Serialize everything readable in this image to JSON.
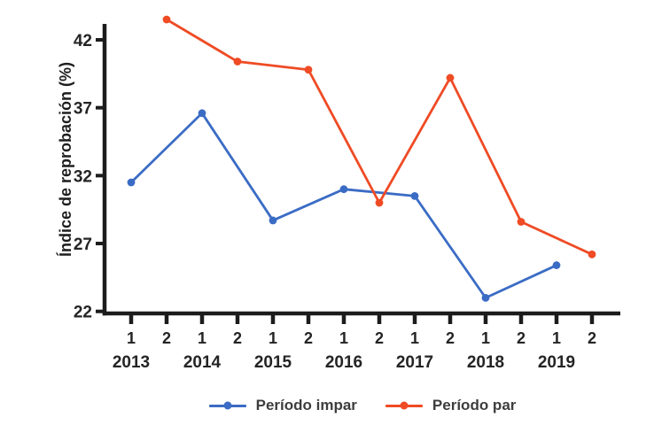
{
  "chart_data": {
    "type": "line",
    "title": "",
    "ylabel": "Índice de reprobación (%)",
    "xlabel": "",
    "y_ticks": [
      22,
      27,
      32,
      37,
      42
    ],
    "ylim": [
      22,
      43.8
    ],
    "grid": false,
    "legend_position": "bottom",
    "x_axis": {
      "period_tick_labels": [
        "1",
        "2",
        "1",
        "2",
        "1",
        "2",
        "1",
        "2",
        "1",
        "2",
        "1",
        "2",
        "1",
        "2"
      ],
      "year_labels": [
        "2013",
        "2014",
        "2015",
        "2016",
        "2017",
        "2018",
        "2019"
      ]
    },
    "series": [
      {
        "name": "Período impar",
        "color": "#3B6CC5",
        "period": "1",
        "x_slots": [
          0,
          2,
          4,
          6,
          8,
          10,
          12
        ],
        "x_labels": [
          "2013-1",
          "2014-1",
          "2015-1",
          "2016-1",
          "2017-1",
          "2018-1",
          "2019-1"
        ],
        "values": [
          31.5,
          36.6,
          28.7,
          31.0,
          30.5,
          23.0,
          25.4
        ]
      },
      {
        "name": "Período par",
        "color": "#EF4B25",
        "period": "2",
        "x_slots": [
          1,
          3,
          5,
          7,
          9,
          11,
          13
        ],
        "x_labels": [
          "2013-2",
          "2014-2",
          "2015-2",
          "2016-2",
          "2017-2",
          "2018-2",
          "2019-2"
        ],
        "values": [
          43.5,
          40.4,
          39.8,
          30.0,
          39.2,
          28.6,
          26.2
        ]
      }
    ],
    "axis_color": "#1c1c1c",
    "tick_text_color": "#242424",
    "legend_text_color": "#3d3d3d"
  }
}
